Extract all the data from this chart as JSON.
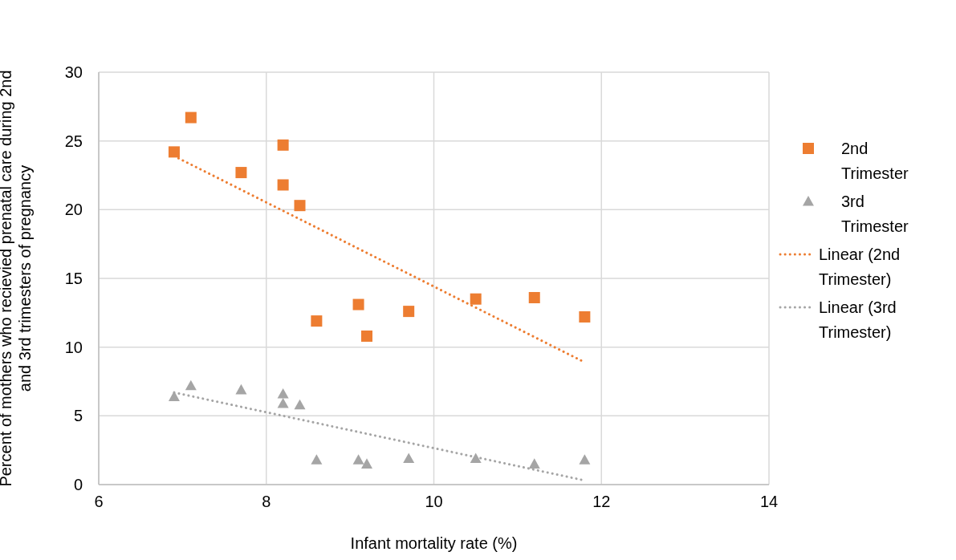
{
  "chart_data": {
    "type": "scatter",
    "xlabel": "Infant mortality rate (%)",
    "ylabel": "Percent of mothers who recievied prenatal care during 2nd and 3rd trimesters of pregnancy",
    "xlim": [
      6,
      14
    ],
    "ylim": [
      0,
      30
    ],
    "xticks": [
      6,
      8,
      10,
      12,
      14
    ],
    "yticks": [
      0,
      5,
      10,
      15,
      20,
      25,
      30
    ],
    "grid": true,
    "legend": "right",
    "series": [
      {
        "name": "2nd Trimester",
        "color": "#ed7d31",
        "marker": "square",
        "x": [
          6.9,
          7.1,
          7.7,
          8.2,
          8.2,
          8.4,
          8.6,
          9.1,
          9.2,
          9.7,
          10.5,
          11.2,
          11.8
        ],
        "values": [
          24.2,
          26.7,
          22.7,
          24.7,
          21.8,
          20.3,
          11.9,
          13.1,
          10.8,
          12.6,
          13.5,
          13.6,
          12.2
        ]
      },
      {
        "name": "3rd Trimester",
        "color": "#a5a5a5",
        "marker": "triangle",
        "x": [
          6.9,
          7.1,
          7.7,
          8.2,
          8.2,
          8.4,
          8.6,
          9.1,
          9.2,
          9.7,
          10.5,
          11.2,
          11.8
        ],
        "values": [
          6.4,
          7.2,
          6.9,
          6.6,
          5.9,
          5.8,
          1.8,
          1.8,
          1.5,
          1.9,
          1.9,
          1.5,
          1.8
        ]
      },
      {
        "name": "Linear (2nd Trimester)",
        "type": "line",
        "color": "#ed7d31",
        "marker": "none",
        "line_style": "dotted",
        "x": [
          6.9,
          11.8
        ],
        "values": [
          23.9,
          8.9
        ]
      },
      {
        "name": "Linear (3rd Trimester)",
        "type": "line",
        "color": "#a5a5a5",
        "marker": "none",
        "line_style": "dotted",
        "x": [
          6.9,
          11.8
        ],
        "values": [
          6.7,
          0.3
        ]
      }
    ]
  }
}
